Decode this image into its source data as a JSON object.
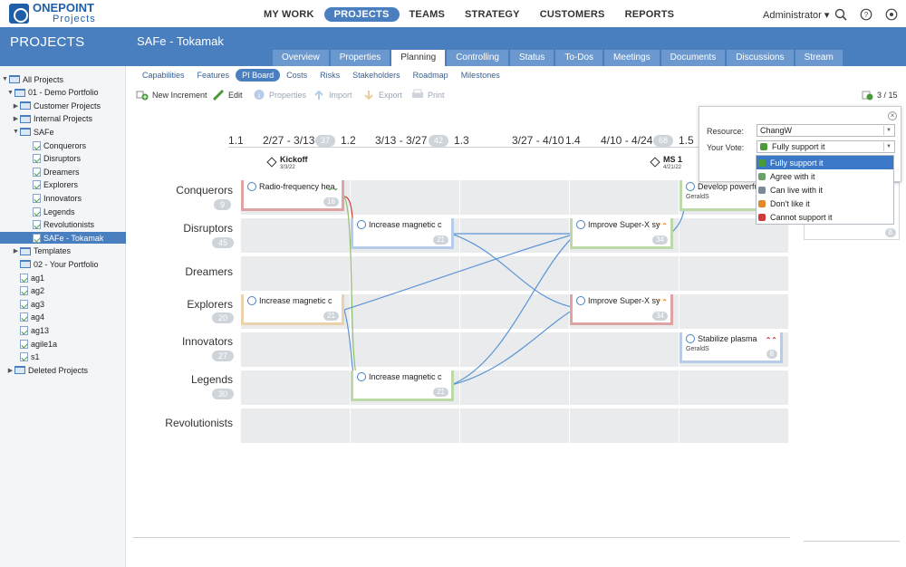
{
  "app": {
    "logo_text": "ONEPOINT",
    "logo_sub": "Projects"
  },
  "nav": [
    {
      "label": "MY WORK",
      "active": false
    },
    {
      "label": "PROJECTS",
      "active": true
    },
    {
      "label": "TEAMS",
      "active": false
    },
    {
      "label": "STRATEGY",
      "active": false
    },
    {
      "label": "CUSTOMERS",
      "active": false
    },
    {
      "label": "REPORTS",
      "active": false
    }
  ],
  "user": {
    "name": "Administrator ▾"
  },
  "header": {
    "section": "PROJECTS",
    "project_title": "SAFe - Tokamak"
  },
  "tabs": [
    "Overview",
    "Properties",
    "Planning",
    "Controlling",
    "Status",
    "To-Dos",
    "Meetings",
    "Documents",
    "Discussions",
    "Stream"
  ],
  "active_tab": "Planning",
  "subtabs": [
    "Capabilities",
    "Features",
    "PI Board",
    "Costs",
    "Risks",
    "Stakeholders",
    "Roadmap",
    "Milestones"
  ],
  "active_subtab": "PI Board",
  "toolbar": {
    "new_increment": "New Increment",
    "edit": "Edit",
    "properties": "Properties",
    "import": "Import",
    "export": "Export",
    "print": "Print",
    "counter": "3 / 15"
  },
  "tree": [
    {
      "label": "All Projects",
      "caret": "▼",
      "type": "folder"
    },
    {
      "label": "01 - Demo Portfolio",
      "caret": "▼",
      "type": "folder"
    },
    {
      "label": "Customer Projects",
      "caret": "▶",
      "type": "folder"
    },
    {
      "label": "Internal Projects",
      "caret": "▶",
      "type": "folder"
    },
    {
      "label": "SAFe",
      "caret": "▼",
      "type": "folder"
    },
    {
      "label": "Conquerors",
      "caret": "",
      "type": "project"
    },
    {
      "label": "Disruptors",
      "caret": "",
      "type": "project"
    },
    {
      "label": "Dreamers",
      "caret": "",
      "type": "project"
    },
    {
      "label": "Explorers",
      "caret": "",
      "type": "project"
    },
    {
      "label": "Innovators",
      "caret": "",
      "type": "project"
    },
    {
      "label": "Legends",
      "caret": "",
      "type": "project"
    },
    {
      "label": "Revolutionists",
      "caret": "",
      "type": "project"
    },
    {
      "label": "SAFe - Tokamak",
      "caret": "",
      "type": "project",
      "selected": true
    },
    {
      "label": "Templates",
      "caret": "▶",
      "type": "folder"
    },
    {
      "label": "02 - Your Portfolio",
      "caret": "",
      "type": "folder"
    },
    {
      "label": "ag1",
      "caret": "",
      "type": "project"
    },
    {
      "label": "ag2",
      "caret": "",
      "type": "project"
    },
    {
      "label": "ag3",
      "caret": "",
      "type": "project"
    },
    {
      "label": "ag4",
      "caret": "",
      "type": "project"
    },
    {
      "label": "ag13",
      "caret": "",
      "type": "project"
    },
    {
      "label": "agile1a",
      "caret": "",
      "type": "project"
    },
    {
      "label": "s1",
      "caret": "",
      "type": "project"
    },
    {
      "label": "Deleted Projects",
      "caret": "▶",
      "type": "folder"
    }
  ],
  "iterations": [
    {
      "id": "1.1",
      "range": "2/27 - 3/13",
      "points": "37"
    },
    {
      "id": "1.2",
      "range": "3/13 - 3/27",
      "points": "42"
    },
    {
      "id": "1.3",
      "range": "3/27 - 4/10",
      "points": ""
    },
    {
      "id": "1.4",
      "range": "4/10 - 4/24",
      "points": "68"
    },
    {
      "id": "1.5",
      "range": "",
      "points": ""
    }
  ],
  "milestones": [
    {
      "name": "Kickoff",
      "date": "3/3/22"
    },
    {
      "name": "MS 1",
      "date": "4/21/22"
    }
  ],
  "teams": [
    {
      "name": "Conquerors",
      "points": "9"
    },
    {
      "name": "Disruptors",
      "points": "45"
    },
    {
      "name": "Dreamers",
      "points": ""
    },
    {
      "name": "Explorers",
      "points": "20"
    },
    {
      "name": "Innovators",
      "points": "27"
    },
    {
      "name": "Legends",
      "points": "30"
    },
    {
      "name": "Revolutionists",
      "points": ""
    }
  ],
  "cards": [
    {
      "title": "Radio-frequency hea",
      "points": "16",
      "owner": "",
      "color": "red",
      "prio": "⌄⌄",
      "prio_color": "#4a9a3a"
    },
    {
      "title": "Increase magnetic c",
      "points": "21",
      "owner": "",
      "color": "blue",
      "prio": "",
      "prio_color": ""
    },
    {
      "title": "Improve Super-X sy",
      "points": "34",
      "owner": "",
      "color": "green",
      "prio": "⌃⌃",
      "prio_color": "#e08a2a"
    },
    {
      "title": "Increase magnetic c",
      "points": "21",
      "owner": "",
      "color": "orange",
      "prio": "",
      "prio_color": ""
    },
    {
      "title": "Improve Super-X sy",
      "points": "34",
      "owner": "",
      "color": "red",
      "prio": "⌃⌃",
      "prio_color": "#e08a2a"
    },
    {
      "title": "Stabilize plasma",
      "points": "8",
      "owner": "GeraldS",
      "color": "blue",
      "prio": "⌃⌃",
      "prio_color": "#d23a3a"
    },
    {
      "title": "Increase magnetic c",
      "points": "21",
      "owner": "",
      "color": "green",
      "prio": "",
      "prio_color": ""
    },
    {
      "title": "Develop powerfu",
      "points": "",
      "owner": "GeraldS",
      "color": "green",
      "prio": "",
      "prio_color": ""
    }
  ],
  "side_card": {
    "points": "8"
  },
  "vote_panel": {
    "resource_label": "Resource:",
    "resource_value": "ChangW",
    "vote_label": "Your Vote:",
    "vote_value": "Fully support it",
    "options": [
      {
        "label": "Fully support it",
        "color": "#4a9a3a",
        "selected": true
      },
      {
        "label": "Agree with it",
        "color": "#6aa06a",
        "selected": false
      },
      {
        "label": "Can live with it",
        "color": "#7a8a99",
        "selected": false
      },
      {
        "label": "Don't like it",
        "color": "#e08a2a",
        "selected": false
      },
      {
        "label": "Cannot support it",
        "color": "#d23a3a",
        "selected": false
      }
    ]
  }
}
